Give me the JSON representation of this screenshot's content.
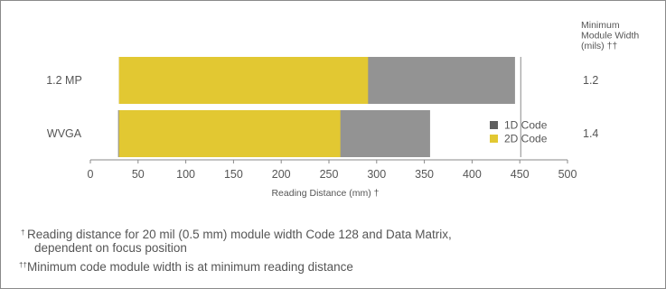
{
  "chart_data": {
    "type": "bar",
    "orientation": "horizontal",
    "stacked": false,
    "categories": [
      "1.2 MP",
      "WVGA"
    ],
    "series": [
      {
        "name": "1D Code",
        "color": "#939393",
        "ranges": [
          [
            30,
            445
          ],
          [
            29,
            356
          ]
        ]
      },
      {
        "name": "2D Code",
        "color": "#e2c832",
        "ranges": [
          [
            30,
            291
          ],
          [
            30,
            262
          ]
        ]
      }
    ],
    "xlabel": "Reading Distance (mm) †",
    "xlim": [
      0,
      500
    ],
    "xticks": [
      "0",
      "50",
      "100",
      "150",
      "200",
      "250",
      "300",
      "350",
      "400",
      "450",
      "500"
    ],
    "right_axis": {
      "title_lines": [
        "Minimum",
        "Module Width",
        "(mils) ††"
      ],
      "values": [
        "1.2",
        "1.4"
      ]
    },
    "legend": {
      "placement": "right"
    },
    "grid": false
  },
  "footnotes": [
    {
      "mark": "†",
      "lines": [
        "Reading distance for 20 mil (0.5 mm) module width Code 128 and Data Matrix,",
        "dependent on focus position"
      ]
    },
    {
      "mark": "††",
      "lines": [
        "Minimum code module width is at minimum reading distance"
      ]
    }
  ]
}
